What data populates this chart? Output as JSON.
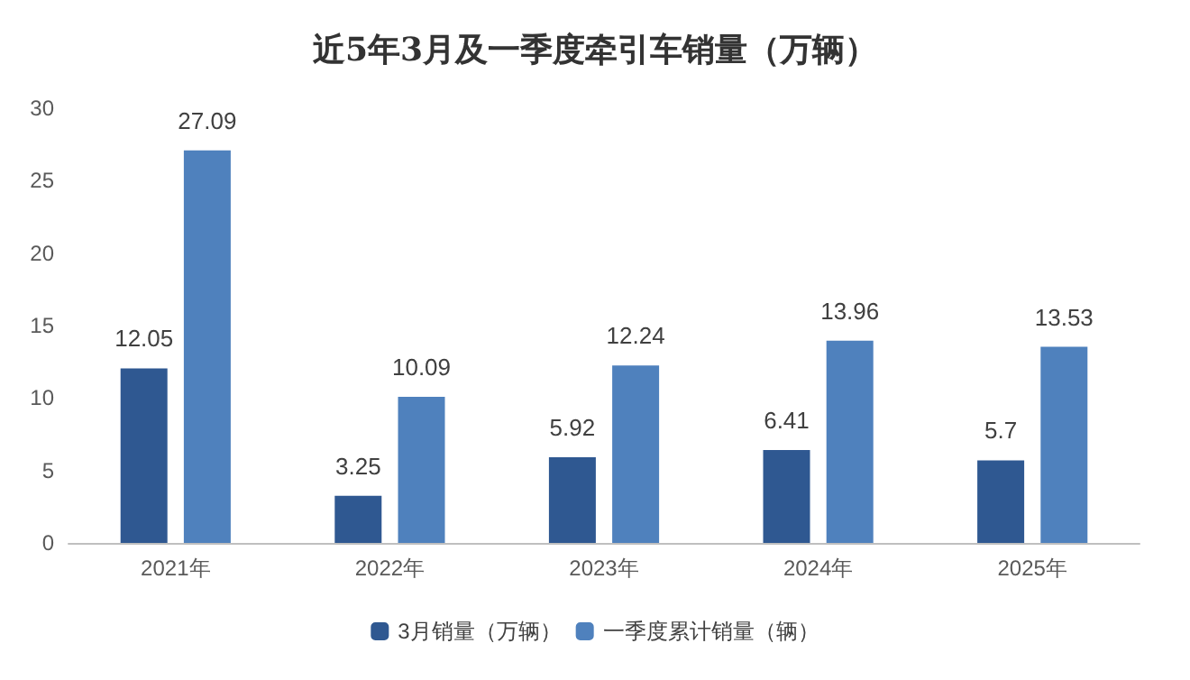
{
  "chart_data": {
    "type": "bar",
    "title": "近5年3月及一季度牵引车销量（万辆）",
    "categories": [
      "2021年",
      "2022年",
      "2023年",
      "2024年",
      "2025年"
    ],
    "series": [
      {
        "name": "3月销量（万辆）",
        "color": "#2f5891",
        "values": [
          12.05,
          3.25,
          5.92,
          6.41,
          5.7
        ]
      },
      {
        "name": "一季度累计销量（辆）",
        "color": "#4f81bd",
        "values": [
          27.09,
          10.09,
          12.24,
          13.96,
          13.53
        ]
      }
    ],
    "ylim": [
      0,
      30
    ],
    "yticks": [
      0,
      5,
      10,
      15,
      20,
      25,
      30
    ],
    "grid": false,
    "legend": "bottom",
    "data_labels": true
  }
}
